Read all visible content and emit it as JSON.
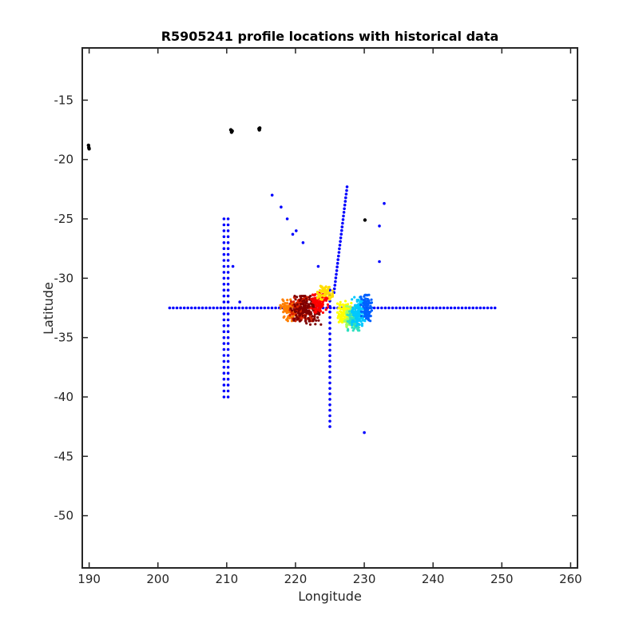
{
  "chart_data": {
    "type": "scatter",
    "title": "R5905241 profile locations with historical data",
    "xlabel": "Longitude",
    "ylabel": "Latitude",
    "xlim": [
      189,
      261
    ],
    "ylim": [
      -54.4,
      -10.6
    ],
    "xticks": [
      190,
      200,
      210,
      220,
      230,
      240,
      250,
      260
    ],
    "yticks": [
      -15,
      -20,
      -25,
      -30,
      -35,
      -40,
      -45,
      -50
    ],
    "grid": false,
    "legend": "none",
    "series": [
      {
        "color": "#0000ff",
        "marker_size": 1.8,
        "lines": [
          {
            "from": [
              201.7,
              -32.5
            ],
            "to": [
              249.0,
              -32.5
            ],
            "count": 90
          },
          {
            "from": [
              209.6,
              -25.0
            ],
            "to": [
              209.6,
              -40.0
            ],
            "count": 31
          },
          {
            "from": [
              210.2,
              -25.0
            ],
            "to": [
              210.2,
              -40.0
            ],
            "count": 31
          },
          {
            "from": [
              225.0,
              -31.0
            ],
            "to": [
              225.0,
              -42.5
            ],
            "count": 26
          },
          {
            "from": [
              227.5,
              -22.3
            ],
            "to": [
              225.6,
              -31.2
            ],
            "count": 30
          }
        ],
        "points": [
          [
            216.6,
            -23.0
          ],
          [
            217.9,
            -24.0
          ],
          [
            218.8,
            -25.0
          ],
          [
            219.6,
            -26.3
          ],
          [
            220.1,
            -26.0
          ],
          [
            221.1,
            -27.0
          ],
          [
            223.3,
            -29.0
          ],
          [
            210.9,
            -29.0
          ],
          [
            211.9,
            -32.0
          ],
          [
            230.0,
            -43.0
          ],
          [
            232.2,
            -25.6
          ],
          [
            232.9,
            -23.7
          ],
          [
            232.2,
            -28.6
          ]
        ]
      },
      {
        "color": "#000000",
        "marker_size": 2.2,
        "points": [
          [
            189.9,
            -18.8
          ],
          [
            189.95,
            -19.0
          ],
          [
            190.0,
            -19.1
          ],
          [
            210.6,
            -17.5
          ],
          [
            210.7,
            -17.7
          ],
          [
            210.8,
            -17.6
          ],
          [
            214.7,
            -17.4
          ],
          [
            214.75,
            -17.5
          ],
          [
            214.8,
            -17.35
          ],
          [
            230.1,
            -25.1
          ]
        ]
      },
      {
        "color": "#ff7f00",
        "marker_size": 1.6,
        "cluster": {
          "center": [
            219.0,
            -32.7
          ],
          "spread": [
            1.2,
            0.9
          ],
          "count": 70
        }
      },
      {
        "color": "#dd2200",
        "marker_size": 1.6,
        "cluster": {
          "center": [
            221.0,
            -32.6
          ],
          "spread": [
            1.8,
            1.0
          ],
          "count": 120
        }
      },
      {
        "color": "#800000",
        "marker_size": 1.6,
        "cluster": {
          "center": [
            221.5,
            -32.7
          ],
          "spread": [
            2.2,
            1.2
          ],
          "count": 140
        }
      },
      {
        "color": "#ff0000",
        "marker_size": 1.6,
        "cluster": {
          "center": [
            223.5,
            -32.0
          ],
          "spread": [
            1.2,
            0.9
          ],
          "count": 110
        }
      },
      {
        "color": "#ffdd00",
        "marker_size": 1.6,
        "cluster": {
          "center": [
            224.3,
            -31.2
          ],
          "spread": [
            1.1,
            0.7
          ],
          "count": 60
        }
      },
      {
        "color": "#ffff00",
        "marker_size": 1.6,
        "cluster": {
          "center": [
            227.2,
            -33.0
          ],
          "spread": [
            1.1,
            1.1
          ],
          "count": 110
        }
      },
      {
        "color": "#a0ff60",
        "marker_size": 1.6,
        "cluster": {
          "center": [
            228.0,
            -33.2
          ],
          "spread": [
            0.9,
            1.0
          ],
          "count": 70
        }
      },
      {
        "color": "#30e0c0",
        "marker_size": 1.6,
        "cluster": {
          "center": [
            228.5,
            -33.6
          ],
          "spread": [
            1.0,
            0.8
          ],
          "count": 80
        }
      },
      {
        "color": "#00c8ff",
        "marker_size": 1.6,
        "cluster": {
          "center": [
            229.3,
            -32.8
          ],
          "spread": [
            1.1,
            1.2
          ],
          "count": 120
        }
      },
      {
        "color": "#0060ff",
        "marker_size": 1.6,
        "cluster": {
          "center": [
            230.3,
            -32.5
          ],
          "spread": [
            0.8,
            1.1
          ],
          "count": 100
        }
      }
    ]
  }
}
